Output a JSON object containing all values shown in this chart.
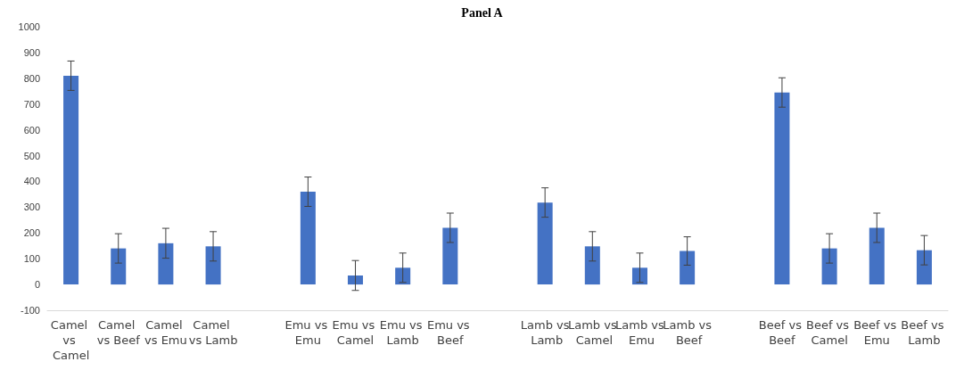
{
  "chart_data": {
    "type": "bar",
    "title": "Panel A",
    "categories": [
      "Camel vs Camel",
      "Camel vs Beef",
      "Camel vs Emu",
      "Camel vs Lamb",
      null,
      "Emu vs Emu",
      "Emu vs Camel",
      "Emu vs Lamb",
      "Emu vs Beef",
      null,
      "Lamb vs Lamb",
      "Lamb vs Camel",
      "Lamb vs Emu",
      "Lamb vs Beef",
      null,
      "Beef vs Beef",
      "Beef vs Camel",
      "Beef vs Emu",
      "Beef vs Lamb"
    ],
    "values": [
      810,
      140,
      160,
      148,
      null,
      360,
      35,
      65,
      220,
      null,
      318,
      148,
      65,
      130,
      null,
      745,
      140,
      220,
      133
    ],
    "errors": [
      57,
      57,
      58,
      57,
      null,
      57,
      58,
      57,
      57,
      null,
      57,
      57,
      57,
      55,
      null,
      57,
      57,
      57,
      57
    ],
    "color": "#4472c4",
    "ylim": [
      -100,
      1000
    ],
    "yticks": [
      -100,
      0,
      100,
      200,
      300,
      400,
      500,
      600,
      700,
      800,
      900,
      1000
    ],
    "grid": false
  }
}
